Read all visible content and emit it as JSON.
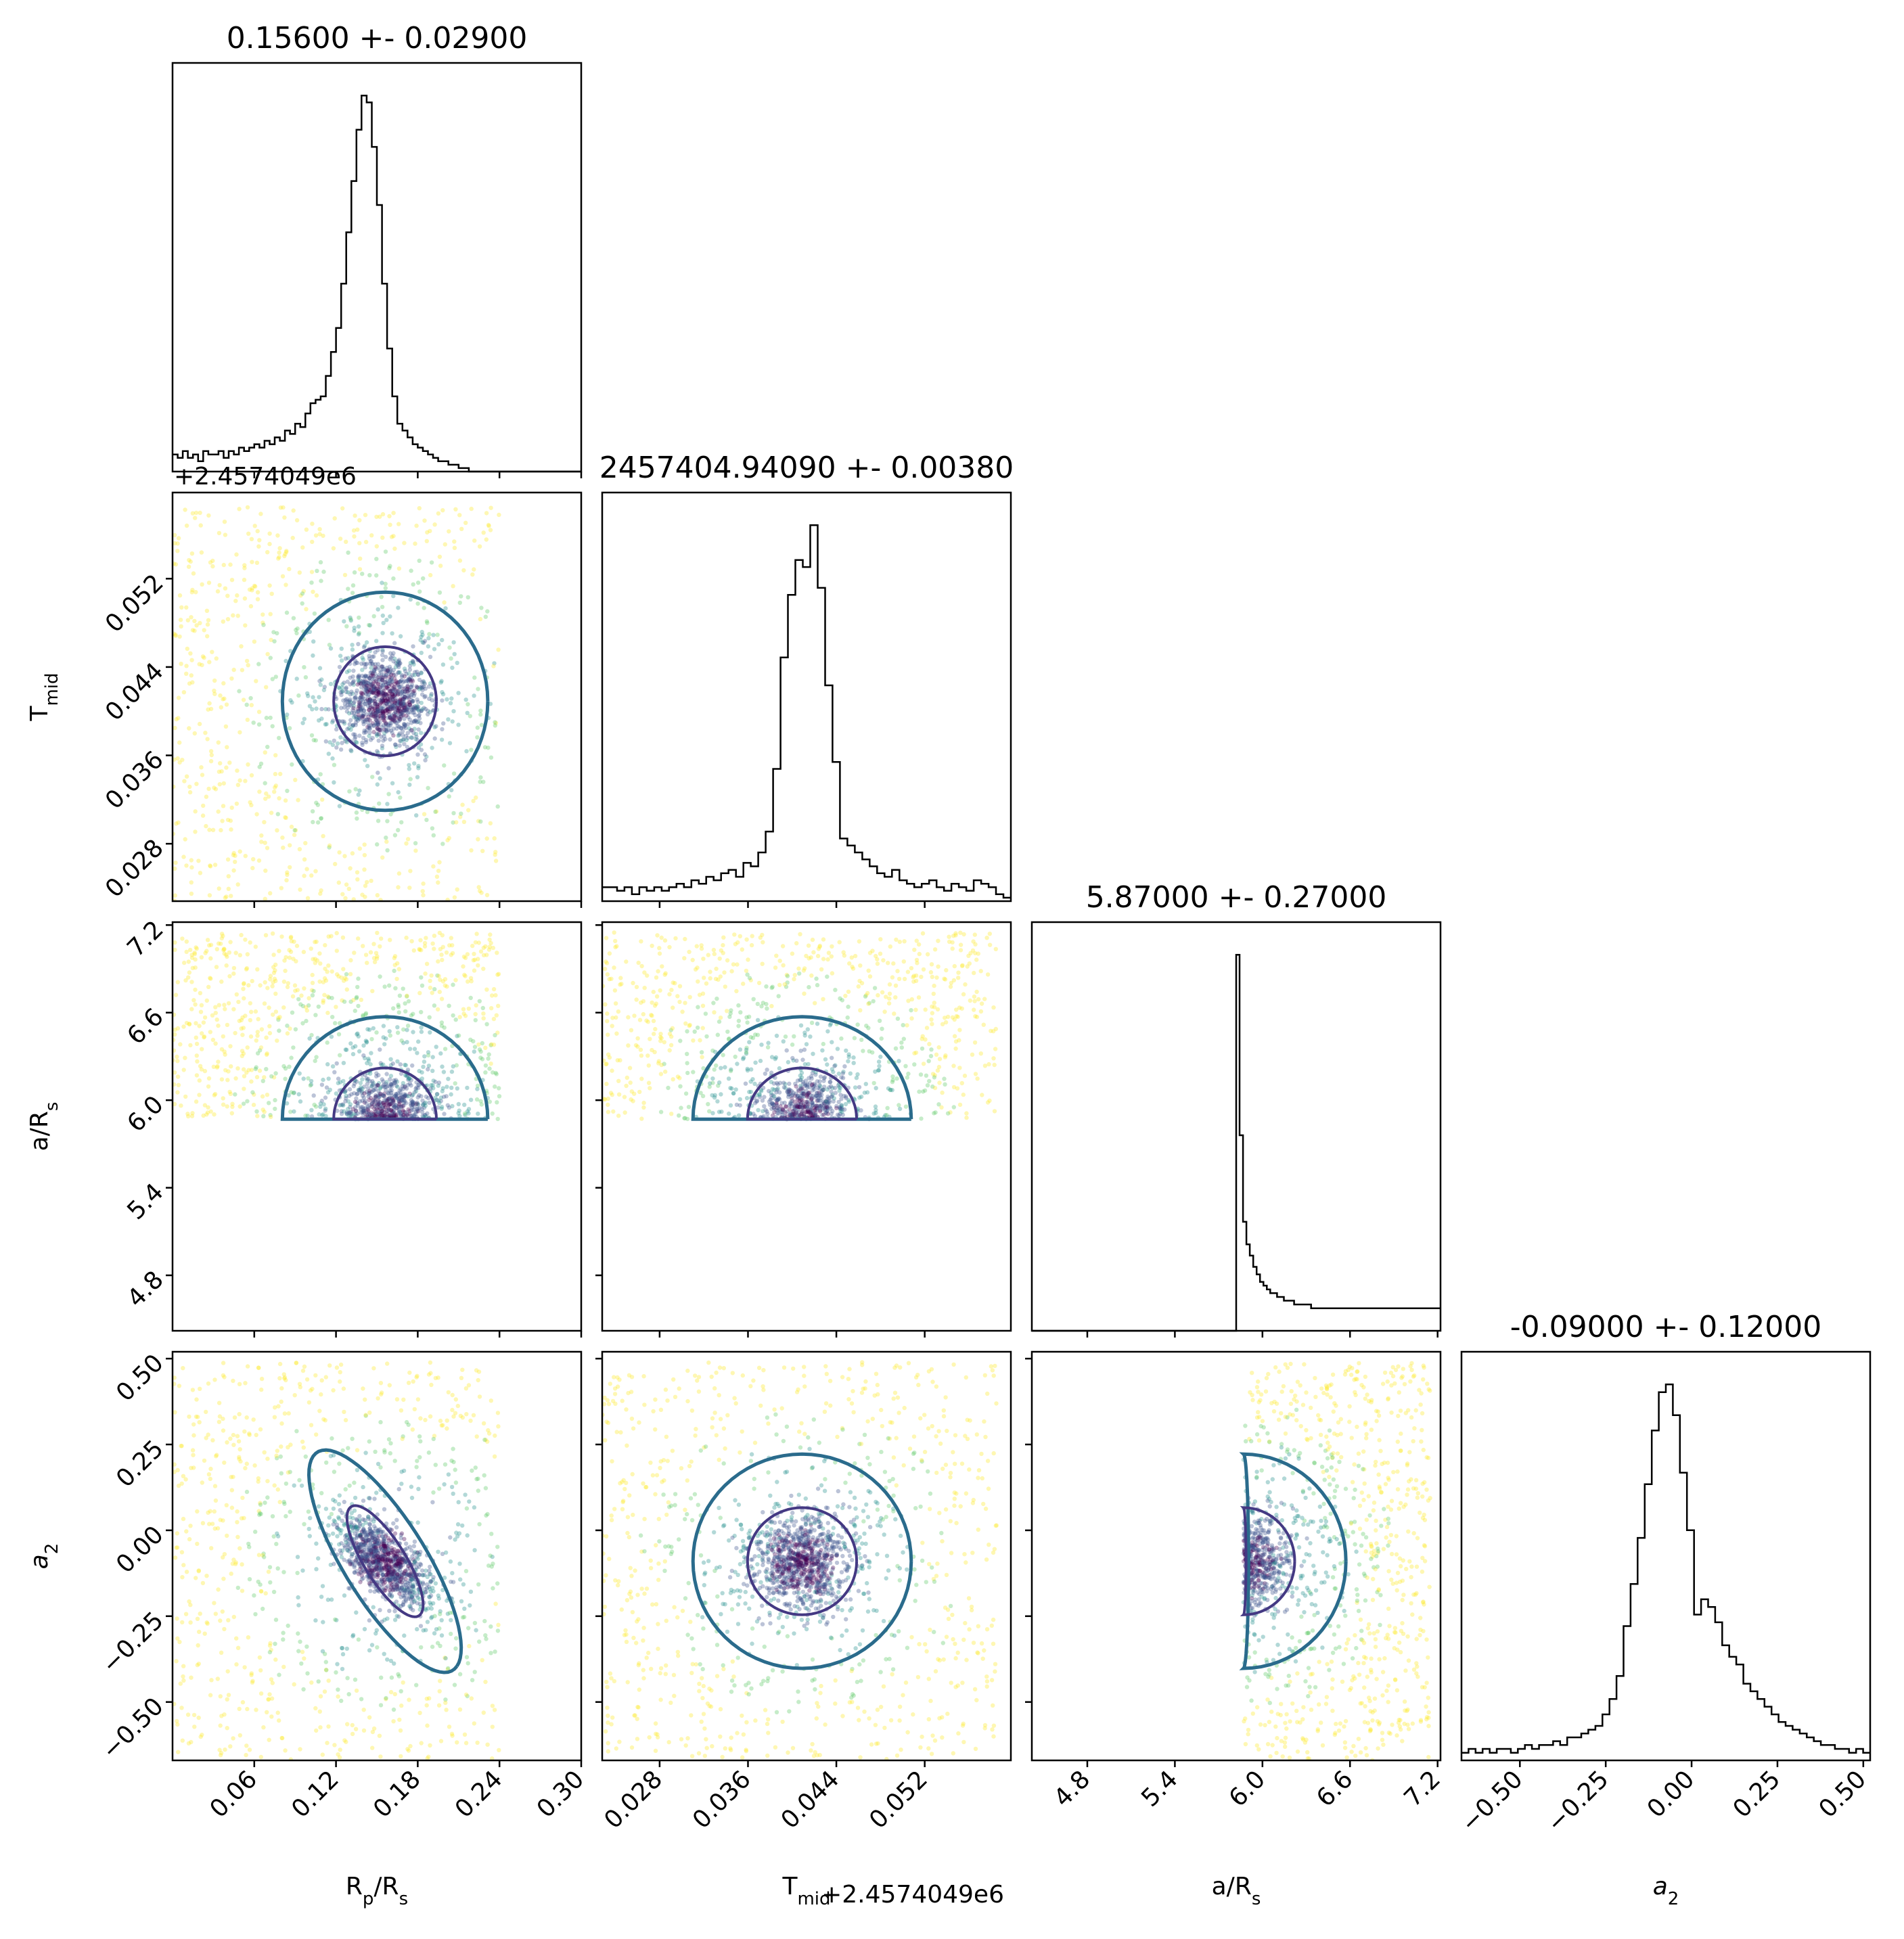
{
  "chart_data": {
    "type": "scatter",
    "description_kind": "corner plot",
    "parameters": [
      {
        "key": "rp",
        "label": "R_p/R_s",
        "label_parts": [
          {
            "t": "R"
          },
          {
            "t": "p",
            "sub": true
          },
          {
            "t": "/R"
          },
          {
            "t": "s",
            "sub": true
          }
        ],
        "range": [
          0.0,
          0.3
        ],
        "ticks": [
          0.06,
          0.12,
          0.18,
          0.24,
          0.3
        ],
        "tick_labels": [
          "0.06",
          "0.12",
          "0.18",
          "0.24",
          "0.30"
        ],
        "title": "0.15600 +- 0.02900",
        "mean": 0.156,
        "sigma": 0.029
      },
      {
        "key": "tmid",
        "label": "T_mid",
        "label_parts": [
          {
            "t": "T"
          },
          {
            "t": "mid",
            "sub": true
          }
        ],
        "offset": "+2.4574049e6",
        "range": [
          0.0228,
          0.0598
        ],
        "ticks": [
          0.028,
          0.036,
          0.044,
          0.052
        ],
        "tick_labels": [
          "0.028",
          "0.036",
          "0.044",
          "0.052"
        ],
        "title": "2457404.94090 +- 0.00380",
        "mean": 0.0409,
        "sigma": 0.0038
      },
      {
        "key": "ars",
        "label": "a/R_s",
        "label_parts": [
          {
            "t": "a/R"
          },
          {
            "t": "s",
            "sub": true
          }
        ],
        "range": [
          4.42,
          7.22
        ],
        "ticks": [
          4.8,
          5.4,
          6.0,
          6.6,
          7.2
        ],
        "tick_labels": [
          "4.8",
          "5.4",
          "6.0",
          "6.6",
          "7.2"
        ],
        "title": "5.87000 +- 0.27000",
        "mean": 5.87,
        "sigma": 0.27
      },
      {
        "key": "a2",
        "label": "a_2",
        "label_parts": [
          {
            "t": "a",
            "italic": true
          },
          {
            "t": "2",
            "sub": true
          }
        ],
        "range": [
          -0.67,
          0.52
        ],
        "ticks": [
          -0.5,
          -0.25,
          0.0,
          0.25,
          0.5
        ],
        "tick_labels": [
          "−0.50",
          "−0.25",
          "0.00",
          "0.25",
          "0.50"
        ],
        "title": "-0.09000 +- 0.12000",
        "mean": -0.09,
        "sigma": 0.12
      }
    ],
    "histograms": {
      "rp": {
        "edges": [
          0.0,
          0.3
        ],
        "counts": [
          5,
          4,
          6,
          4,
          5,
          3,
          6,
          5,
          5,
          6,
          4,
          6,
          5,
          7,
          6,
          7,
          8,
          7,
          9,
          8,
          10,
          9,
          12,
          11,
          14,
          13,
          17,
          20,
          21,
          22,
          28,
          35,
          42,
          55,
          70,
          85,
          100,
          110,
          108,
          95,
          78,
          55,
          36,
          22,
          14,
          12,
          10,
          8,
          7,
          6,
          5,
          4,
          3,
          3,
          2,
          2,
          1,
          1,
          0,
          0,
          0,
          0,
          0,
          0,
          0,
          0,
          0,
          0,
          0,
          0,
          0,
          0,
          0,
          0,
          0,
          0,
          0,
          0,
          0,
          0
        ]
      },
      "tmid": {
        "edges": [
          0.0228,
          0.0598
        ],
        "counts": [
          4,
          4,
          3,
          4,
          2,
          4,
          3,
          4,
          3,
          4,
          5,
          4,
          6,
          5,
          7,
          6,
          8,
          9,
          7,
          11,
          10,
          14,
          20,
          38,
          70,
          88,
          98,
          96,
          108,
          90,
          62,
          40,
          18,
          16,
          14,
          12,
          10,
          8,
          7,
          9,
          6,
          5,
          4,
          5,
          6,
          4,
          3,
          5,
          4,
          3,
          6,
          5,
          4,
          2,
          1
        ]
      },
      "ars": {
        "edges": [
          4.42,
          7.22
        ],
        "counts": [
          0,
          0,
          0,
          0,
          0,
          0,
          0,
          0,
          0,
          0,
          0,
          0,
          0,
          0,
          0,
          0,
          0,
          0,
          0,
          0,
          0,
          0,
          0,
          0,
          0,
          0,
          0,
          0,
          0,
          0,
          0,
          0,
          0,
          0,
          0,
          0,
          0,
          0,
          0,
          0,
          0,
          0,
          0,
          0,
          0,
          0,
          0,
          0,
          0,
          0,
          0,
          0,
          0,
          0,
          0,
          0,
          0,
          0,
          0,
          0,
          100,
          52,
          29,
          23,
          20,
          17,
          15,
          13,
          12,
          11,
          10,
          10,
          9,
          9,
          8,
          8,
          8,
          7,
          7,
          7,
          7,
          7,
          6,
          6,
          6,
          6,
          6,
          6,
          6,
          6,
          6,
          6,
          6,
          6,
          6,
          6,
          6,
          6,
          6,
          6,
          6,
          6,
          6,
          6,
          6,
          6,
          6,
          6,
          6,
          6,
          6,
          6,
          6,
          6,
          6,
          6,
          6,
          6,
          6,
          6
        ]
      },
      "a2": {
        "edges": [
          -0.67,
          0.52
        ],
        "counts": [
          2,
          3,
          2,
          3,
          2,
          3,
          3,
          2,
          3,
          4,
          3,
          4,
          4,
          5,
          4,
          6,
          6,
          7,
          8,
          9,
          12,
          16,
          22,
          35,
          46,
          58,
          72,
          86,
          96,
          98,
          90,
          75,
          60,
          38,
          42,
          40,
          36,
          30,
          27,
          25,
          20,
          18,
          16,
          14,
          12,
          10,
          9,
          8,
          7,
          6,
          5,
          4,
          4,
          3,
          3,
          2,
          3,
          2
        ]
      }
    },
    "contour_levels": [
      "inner (dark purple)",
      "outer (teal)",
      "outer-most (yellow)"
    ],
    "colors": {
      "contour_inner": "#443983",
      "contour_outer": "#2a6b8c",
      "contour_outermost": "#f3e530",
      "points": [
        "#440154",
        "#3b528b",
        "#21908d",
        "#5dc863",
        "#fde725"
      ],
      "histogram": "#000000"
    },
    "grid": false,
    "legend": "none"
  }
}
